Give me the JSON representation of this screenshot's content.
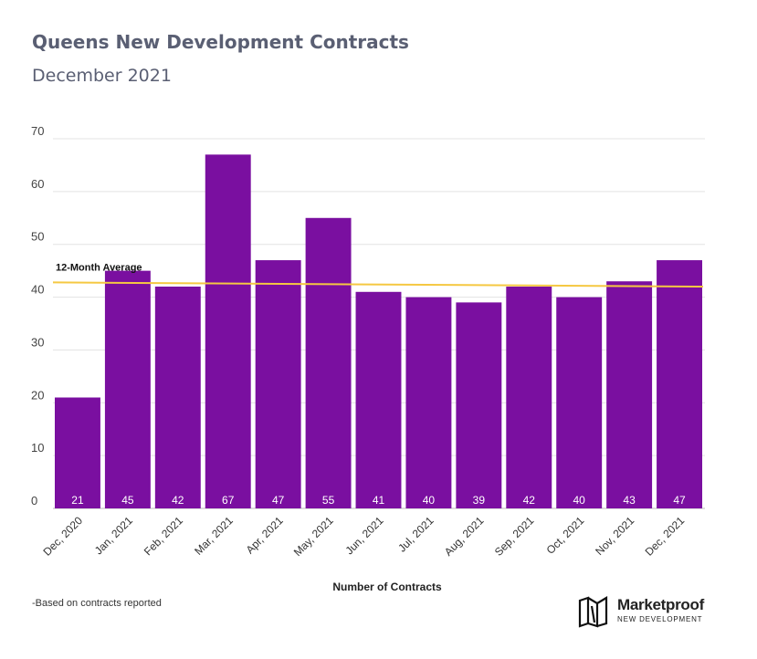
{
  "chart_data": {
    "type": "bar",
    "title": "Queens New Development Contracts",
    "subtitle": "December 2021",
    "categories": [
      "Dec, 2020",
      "Jan, 2021",
      "Feb, 2021",
      "Mar, 2021",
      "Apr, 2021",
      "May, 2021",
      "Jun, 2021",
      "Jul, 2021",
      "Aug, 2021",
      "Sep, 2021",
      "Oct, 2021",
      "Nov, 2021",
      "Dec, 2021"
    ],
    "values": [
      21,
      45,
      42,
      67,
      47,
      55,
      41,
      40,
      39,
      42,
      40,
      43,
      47
    ],
    "data_labels": [
      "21",
      "45",
      "42",
      "67",
      "47",
      "55",
      "41",
      "40",
      "39",
      "42",
      "40",
      "43",
      "47"
    ],
    "yticks": [
      "0",
      "10",
      "20",
      "30",
      "40",
      "50",
      "60",
      "70"
    ],
    "ylim": [
      0,
      70
    ],
    "xlabel": "Number of Contracts",
    "ylabel": "",
    "grid": true,
    "bar_color": "#7a0fa0",
    "average_line": {
      "label": "12-Month Average",
      "start": 42.8,
      "end": 42.0,
      "color": "#f5c842"
    }
  },
  "footnote": "-Based on contracts reported",
  "logo": {
    "name": "Marketproof",
    "tagline": "NEW DEVELOPMENT"
  }
}
